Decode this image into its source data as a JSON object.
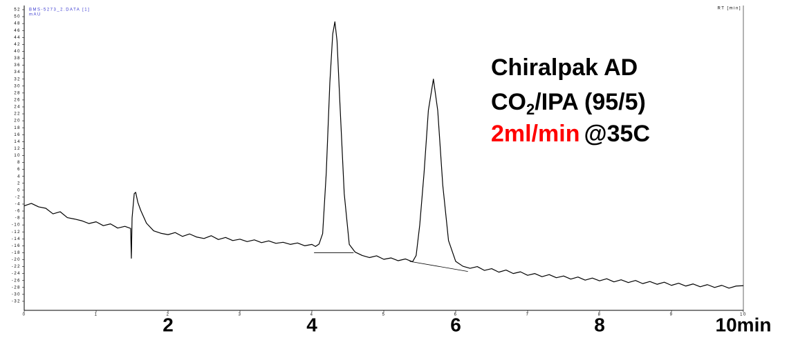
{
  "chart_data": {
    "type": "line",
    "title": "BMS-5273_2.DATA [1]",
    "y_label": "mAU",
    "x_label": "RT [min]",
    "annotation": {
      "line1": "Chiralpak AD",
      "line2_a": "CO",
      "line2_sub": "2",
      "line2_b": "/IPA (95/5)",
      "line3_a": "2ml/min",
      "line3_b": "@35C"
    },
    "xlim": [
      0,
      10
    ],
    "ylim": [
      -34.6,
      52.6
    ],
    "xticks": [
      0,
      1,
      2,
      3,
      4,
      5,
      6,
      7,
      8,
      9,
      10
    ],
    "major_xticks": [
      2,
      4,
      6,
      8,
      {
        "value": 10,
        "label": "10min"
      }
    ],
    "yticks": [
      -32,
      -30,
      -28,
      -26,
      -24,
      -22,
      -20,
      -18,
      -16,
      -14,
      -12,
      -10,
      -8,
      -6,
      -4,
      -2,
      0,
      2,
      4,
      6,
      8,
      10,
      12,
      14,
      16,
      18,
      20,
      22,
      24,
      26,
      28,
      30,
      32,
      34,
      36,
      38,
      40,
      42,
      44,
      46,
      48,
      50,
      52
    ],
    "series": [
      {
        "color": "#000000",
        "x": [
          0,
          0.1,
          0.2,
          0.3,
          0.4,
          0.5,
          0.6,
          0.7,
          0.8,
          0.9,
          1.0,
          1.1,
          1.2,
          1.3,
          1.4,
          1.48,
          1.49,
          1.5,
          1.53,
          1.55,
          1.58,
          1.62,
          1.7,
          1.8,
          1.9,
          2.0,
          2.1,
          2.2,
          2.3,
          2.4,
          2.5,
          2.6,
          2.7,
          2.8,
          2.9,
          3.0,
          3.1,
          3.2,
          3.3,
          3.4,
          3.5,
          3.6,
          3.7,
          3.8,
          3.9,
          4.0,
          4.05,
          4.1,
          4.15,
          4.2,
          4.25,
          4.29,
          4.32,
          4.35,
          4.39,
          4.45,
          4.52,
          4.6,
          4.7,
          4.8,
          4.9,
          5.0,
          5.1,
          5.2,
          5.3,
          5.4,
          5.45,
          5.5,
          5.56,
          5.62,
          5.69,
          5.75,
          5.82,
          5.9,
          6.0,
          6.1,
          6.2,
          6.3,
          6.4,
          6.5,
          6.6,
          6.7,
          6.8,
          6.9,
          7.0,
          7.1,
          7.2,
          7.3,
          7.4,
          7.5,
          7.6,
          7.7,
          7.8,
          7.9,
          8.0,
          8.1,
          8.2,
          8.3,
          8.4,
          8.5,
          8.6,
          8.7,
          8.8,
          8.9,
          9.0,
          9.1,
          9.2,
          9.3,
          9.4,
          9.5,
          9.6,
          9.7,
          9.8,
          9.9,
          10.0
        ],
        "values": [
          -4.5,
          -3.8,
          -4.8,
          -5.2,
          -6.8,
          -6.2,
          -7.9,
          -8.3,
          -8.8,
          -9.6,
          -9.1,
          -10.2,
          -9.7,
          -10.9,
          -10.4,
          -11.0,
          -19.6,
          -8,
          -1.0,
          -0.6,
          -3.5,
          -5.8,
          -9.5,
          -11.7,
          -12.4,
          -12.8,
          -12.2,
          -13.3,
          -12.6,
          -13.5,
          -13.9,
          -13.1,
          -14.2,
          -13.6,
          -14.5,
          -14.1,
          -14.8,
          -14.3,
          -15.1,
          -14.6,
          -15.3,
          -15.0,
          -15.6,
          -15.2,
          -16.0,
          -15.6,
          -16.2,
          -15.5,
          -12.5,
          5.0,
          31.0,
          45.0,
          48.5,
          43.0,
          25.0,
          -1.0,
          -15.6,
          -17.8,
          -18.8,
          -19.4,
          -18.9,
          -19.9,
          -19.5,
          -20.3,
          -19.8,
          -20.6,
          -18.8,
          -10,
          5.0,
          23.0,
          32.0,
          23.0,
          1.5,
          -14.5,
          -20.5,
          -21.9,
          -22.5,
          -22.0,
          -23.1,
          -22.6,
          -23.6,
          -23.0,
          -24.0,
          -23.5,
          -24.5,
          -24.0,
          -24.9,
          -24.3,
          -25.2,
          -24.7,
          -25.6,
          -25.0,
          -25.9,
          -25.3,
          -26.1,
          -25.5,
          -26.4,
          -25.8,
          -26.6,
          -26.0,
          -26.9,
          -26.3,
          -27.1,
          -26.5,
          -27.4,
          -26.8,
          -27.6,
          -27.0,
          -27.8,
          -27.2,
          -28.0,
          -27.4,
          -28.2,
          -27.6,
          -27.5
        ]
      }
    ],
    "baselines": [
      {
        "x": [
          4.03,
          4.58
        ],
        "values": [
          -18.0,
          -18.0
        ]
      },
      {
        "x": [
          5.36,
          6.17
        ],
        "values": [
          -20.5,
          -23.4
        ]
      }
    ]
  }
}
